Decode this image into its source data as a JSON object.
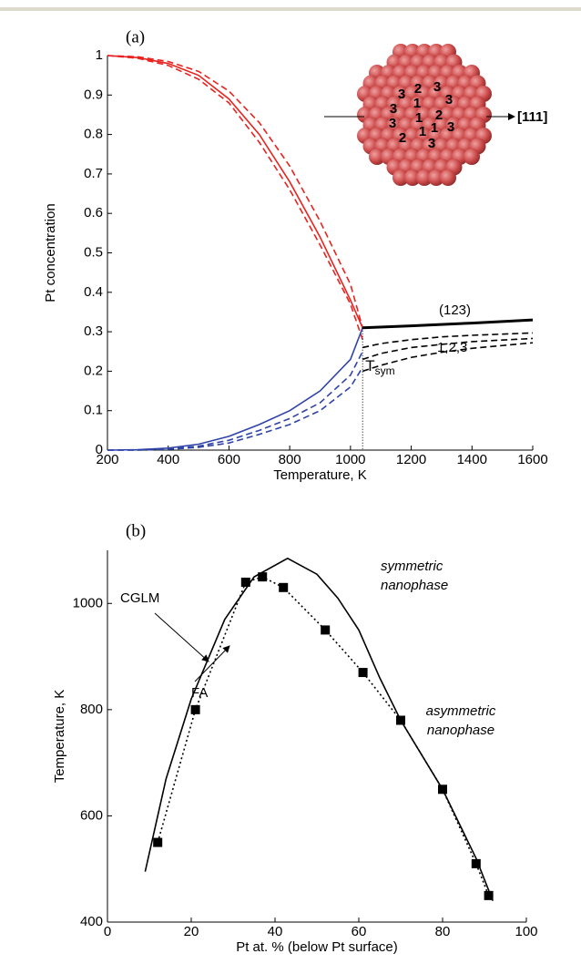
{
  "chart_data": [
    {
      "type": "line",
      "title": "(a)",
      "xlabel": "Temperature, K",
      "ylabel": "Pt concentration",
      "xlim": [
        200,
        1600
      ],
      "xticks": [
        200,
        400,
        600,
        800,
        1000,
        1200,
        1400,
        1600
      ],
      "ylim": [
        0,
        1
      ],
      "yticks": [
        0,
        0.1,
        0.2,
        0.3,
        0.4,
        0.5,
        0.6,
        0.7,
        0.8,
        0.9,
        1
      ],
      "series": [
        {
          "color": "#e8231f",
          "style": "solid",
          "x": [
            200,
            300,
            400,
            500,
            600,
            700,
            800,
            900,
            1000,
            1040
          ],
          "values": [
            1,
            0.995,
            0.98,
            0.95,
            0.89,
            0.8,
            0.68,
            0.54,
            0.38,
            0.31
          ]
        },
        {
          "color": "#e8231f",
          "style": "dashed",
          "x": [
            200,
            300,
            400,
            500,
            600,
            700,
            800,
            900,
            1000,
            1040
          ],
          "values": [
            1,
            0.997,
            0.985,
            0.96,
            0.91,
            0.83,
            0.72,
            0.58,
            0.42,
            0.31
          ]
        },
        {
          "color": "#e8231f",
          "style": "dashed",
          "x": [
            200,
            300,
            400,
            500,
            600,
            700,
            800,
            900,
            1000,
            1040
          ],
          "values": [
            1,
            0.993,
            0.975,
            0.94,
            0.88,
            0.78,
            0.66,
            0.52,
            0.37,
            0.28
          ]
        },
        {
          "color": "#2f43a8",
          "style": "solid",
          "x": [
            200,
            300,
            400,
            500,
            600,
            700,
            800,
            900,
            1000,
            1040
          ],
          "values": [
            0,
            0.001,
            0.005,
            0.015,
            0.035,
            0.065,
            0.1,
            0.15,
            0.23,
            0.31
          ]
        },
        {
          "color": "#2f43a8",
          "style": "dashed",
          "x": [
            200,
            300,
            400,
            500,
            600,
            700,
            800,
            900,
            1000,
            1040
          ],
          "values": [
            0,
            0,
            0.003,
            0.01,
            0.025,
            0.05,
            0.08,
            0.12,
            0.19,
            0.25
          ]
        },
        {
          "color": "#2f43a8",
          "style": "dashed",
          "x": [
            200,
            300,
            400,
            500,
            600,
            700,
            800,
            900,
            1000,
            1040
          ],
          "values": [
            0,
            0,
            0.002,
            0.007,
            0.018,
            0.04,
            0.065,
            0.1,
            0.16,
            0.21
          ]
        },
        {
          "color": "#000000",
          "style": "solid",
          "x": [
            1040,
            1200,
            1400,
            1600
          ],
          "values": [
            0.31,
            0.315,
            0.322,
            0.33
          ]
        },
        {
          "color": "#000000",
          "style": "dashed",
          "x": [
            1040,
            1100,
            1200,
            1300,
            1400,
            1500,
            1600
          ],
          "values": [
            0.26,
            0.27,
            0.28,
            0.287,
            0.291,
            0.294,
            0.297
          ]
        },
        {
          "color": "#000000",
          "style": "dashed",
          "x": [
            1040,
            1100,
            1200,
            1300,
            1400,
            1500,
            1600
          ],
          "values": [
            0.23,
            0.245,
            0.26,
            0.268,
            0.275,
            0.279,
            0.283
          ]
        },
        {
          "color": "#000000",
          "style": "dashed",
          "x": [
            1040,
            1100,
            1200,
            1300,
            1400,
            1500,
            1600
          ],
          "values": [
            0.2,
            0.215,
            0.235,
            0.248,
            0.258,
            0.265,
            0.272
          ]
        }
      ],
      "vline": {
        "x": 1040,
        "top": 0.31
      },
      "annotations": {
        "solid_label": "(123)",
        "dashed_label": "1,2,3",
        "tsym": {
          "text": "T",
          "subscript": "sym"
        }
      },
      "inset": {
        "labels": [
          "3",
          "2",
          "3",
          "3",
          "1",
          "3",
          "3",
          "1",
          "1",
          "2",
          "2",
          "1",
          "3",
          "3"
        ],
        "axis_label": "[111]"
      }
    },
    {
      "type": "line",
      "title": "(b)",
      "xlabel": "Pt at. % (below Pt surface)",
      "ylabel": "Temperature, K",
      "xlim": [
        0,
        100
      ],
      "xticks": [
        0,
        20,
        40,
        60,
        80,
        100
      ],
      "ylim": [
        400,
        1100
      ],
      "yticks": [
        400,
        600,
        800,
        1000
      ],
      "series": [
        {
          "name": "CGLM",
          "color": "#000000",
          "style": "solid",
          "x": [
            9,
            14,
            20,
            28,
            35,
            43,
            50,
            55,
            60,
            65,
            70,
            80,
            88,
            92
          ],
          "values": [
            495,
            670,
            820,
            970,
            1050,
            1085,
            1055,
            1010,
            950,
            860,
            780,
            650,
            520,
            440
          ]
        },
        {
          "name": "FA",
          "color": "#000000",
          "style": "dotted",
          "marker": "square",
          "x": [
            12,
            21,
            33,
            37,
            42,
            52,
            61,
            70,
            80,
            88,
            91
          ],
          "values": [
            550,
            800,
            1040,
            1050,
            1030,
            950,
            870,
            780,
            650,
            510,
            450
          ]
        }
      ],
      "annotations": {
        "upper": [
          "symmetric",
          "nanophase"
        ],
        "lower": [
          "asymmetric",
          "nanophase"
        ]
      }
    }
  ]
}
